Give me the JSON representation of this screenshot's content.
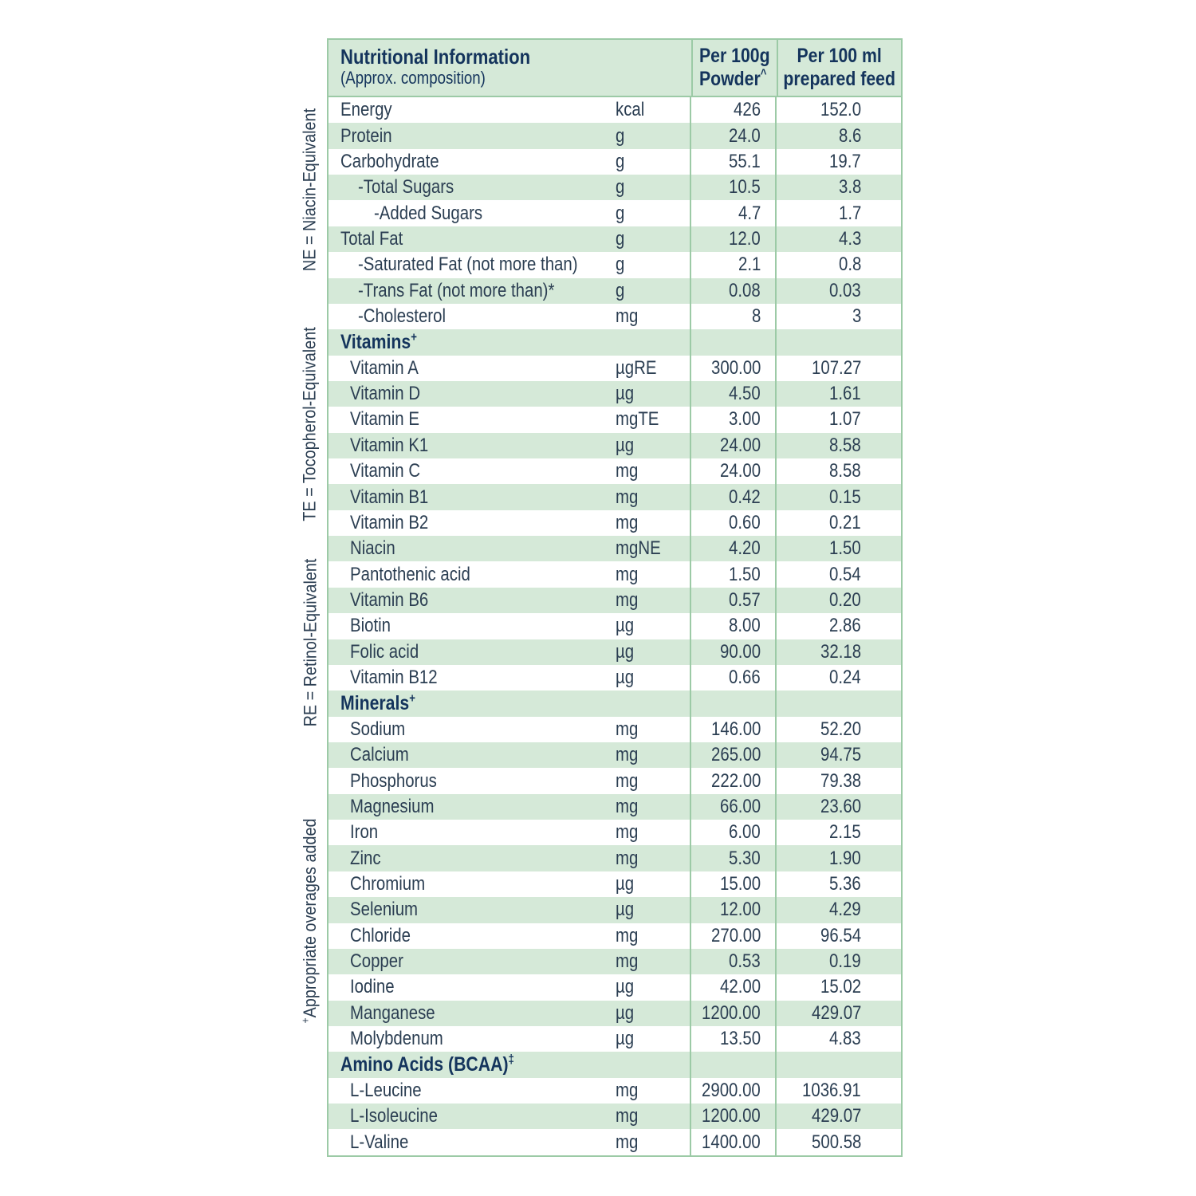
{
  "colors": {
    "stripe_green": "#d5e9d8",
    "grid_line_green": "#9ccaa6",
    "text_dark": "#2b3e52",
    "heading_navy": "#14345c",
    "background": "#ffffff"
  },
  "side_notes": [
    {
      "sup": "",
      "text": "NE = Niacin-Equivalent"
    },
    {
      "sup": "",
      "text": "TE = Tocopherol-Equivalent"
    },
    {
      "sup": "",
      "text": "RE = Retinol-Equivalent"
    },
    {
      "sup": "+",
      "text": "Appropriate overages added"
    }
  ],
  "table": {
    "header": {
      "col1_title": "Nutritional Information",
      "col1_subtitle": "(Approx. composition)",
      "col3_line1": "Per 100g",
      "col3_line2": "Powder",
      "col3_sup": "^",
      "col4_line1": "Per 100 ml",
      "col4_line2": "prepared feed"
    },
    "rows": [
      {
        "name": "Energy",
        "unit": "kcal",
        "per100g": "426",
        "per100ml": "152.0",
        "indent": 0
      },
      {
        "name": "Protein",
        "unit": "g",
        "per100g": "24.0",
        "per100ml": "8.6",
        "indent": 0
      },
      {
        "name": "Carbohydrate",
        "unit": "g",
        "per100g": "55.1",
        "per100ml": "19.7",
        "indent": 0
      },
      {
        "name": "-Total Sugars",
        "unit": "g",
        "per100g": "10.5",
        "per100ml": "3.8",
        "indent": 2
      },
      {
        "name": "-Added Sugars",
        "unit": "g",
        "per100g": "4.7",
        "per100ml": "1.7",
        "indent": 3
      },
      {
        "name": "Total Fat",
        "unit": "g",
        "per100g": "12.0",
        "per100ml": "4.3",
        "indent": 0
      },
      {
        "name": "-Saturated Fat (not more than)",
        "unit": "g",
        "per100g": "2.1",
        "per100ml": "0.8",
        "indent": 2
      },
      {
        "name": "-Trans Fat (not more than)*",
        "unit": "g",
        "per100g": "0.08",
        "per100ml": "0.03",
        "indent": 2
      },
      {
        "name": "-Cholesterol",
        "unit": "mg",
        "per100g": "8",
        "per100ml": "3",
        "indent": 2
      },
      {
        "name": "Vitamins",
        "sup": "+",
        "section": true,
        "unit": "",
        "per100g": "",
        "per100ml": "",
        "indent": 0
      },
      {
        "name": "Vitamin A",
        "unit": "µgRE",
        "per100g": "300.00",
        "per100ml": "107.27",
        "indent": 1
      },
      {
        "name": "Vitamin D",
        "unit": "µg",
        "per100g": "4.50",
        "per100ml": "1.61",
        "indent": 1
      },
      {
        "name": "Vitamin E",
        "unit": "mgTE",
        "per100g": "3.00",
        "per100ml": "1.07",
        "indent": 1
      },
      {
        "name": "Vitamin K1",
        "unit": "µg",
        "per100g": "24.00",
        "per100ml": "8.58",
        "indent": 1
      },
      {
        "name": "Vitamin C",
        "unit": "mg",
        "per100g": "24.00",
        "per100ml": "8.58",
        "indent": 1
      },
      {
        "name": "Vitamin B1",
        "unit": "mg",
        "per100g": "0.42",
        "per100ml": "0.15",
        "indent": 1
      },
      {
        "name": "Vitamin B2",
        "unit": "mg",
        "per100g": "0.60",
        "per100ml": "0.21",
        "indent": 1
      },
      {
        "name": "Niacin",
        "unit": "mgNE",
        "per100g": "4.20",
        "per100ml": "1.50",
        "indent": 1
      },
      {
        "name": "Pantothenic acid",
        "unit": "mg",
        "per100g": "1.50",
        "per100ml": "0.54",
        "indent": 1
      },
      {
        "name": "Vitamin B6",
        "unit": "mg",
        "per100g": "0.57",
        "per100ml": "0.20",
        "indent": 1
      },
      {
        "name": "Biotin",
        "unit": "µg",
        "per100g": "8.00",
        "per100ml": "2.86",
        "indent": 1
      },
      {
        "name": "Folic acid",
        "unit": "µg",
        "per100g": "90.00",
        "per100ml": "32.18",
        "indent": 1
      },
      {
        "name": "Vitamin B12",
        "unit": "µg",
        "per100g": "0.66",
        "per100ml": "0.24",
        "indent": 1
      },
      {
        "name": "Minerals",
        "sup": "+",
        "section": true,
        "unit": "",
        "per100g": "",
        "per100ml": "",
        "indent": 0
      },
      {
        "name": "Sodium",
        "unit": "mg",
        "per100g": "146.00",
        "per100ml": "52.20",
        "indent": 1
      },
      {
        "name": "Calcium",
        "unit": "mg",
        "per100g": "265.00",
        "per100ml": "94.75",
        "indent": 1
      },
      {
        "name": "Phosphorus",
        "unit": "mg",
        "per100g": "222.00",
        "per100ml": "79.38",
        "indent": 1
      },
      {
        "name": "Magnesium",
        "unit": "mg",
        "per100g": "66.00",
        "per100ml": "23.60",
        "indent": 1
      },
      {
        "name": "Iron",
        "unit": "mg",
        "per100g": "6.00",
        "per100ml": "2.15",
        "indent": 1
      },
      {
        "name": "Zinc",
        "unit": "mg",
        "per100g": "5.30",
        "per100ml": "1.90",
        "indent": 1
      },
      {
        "name": "Chromium",
        "unit": "µg",
        "per100g": "15.00",
        "per100ml": "5.36",
        "indent": 1
      },
      {
        "name": "Selenium",
        "unit": "µg",
        "per100g": "12.00",
        "per100ml": "4.29",
        "indent": 1
      },
      {
        "name": "Chloride",
        "unit": "mg",
        "per100g": "270.00",
        "per100ml": "96.54",
        "indent": 1
      },
      {
        "name": "Copper",
        "unit": "mg",
        "per100g": "0.53",
        "per100ml": "0.19",
        "indent": 1
      },
      {
        "name": "Iodine",
        "unit": "µg",
        "per100g": "42.00",
        "per100ml": "15.02",
        "indent": 1
      },
      {
        "name": "Manganese",
        "unit": "µg",
        "per100g": "1200.00",
        "per100ml": "429.07",
        "indent": 1
      },
      {
        "name": "Molybdenum",
        "unit": "µg",
        "per100g": "13.50",
        "per100ml": "4.83",
        "indent": 1
      },
      {
        "name": "Amino Acids (BCAA)",
        "sup": "‡",
        "section": true,
        "unit": "",
        "per100g": "",
        "per100ml": "",
        "indent": 0
      },
      {
        "name": "L-Leucine",
        "unit": "mg",
        "per100g": "2900.00",
        "per100ml": "1036.91",
        "indent": 1
      },
      {
        "name": "L-Isoleucine",
        "unit": "mg",
        "per100g": "1200.00",
        "per100ml": "429.07",
        "indent": 1
      },
      {
        "name": "L-Valine",
        "unit": "mg",
        "per100g": "1400.00",
        "per100ml": "500.58",
        "indent": 1
      }
    ]
  }
}
